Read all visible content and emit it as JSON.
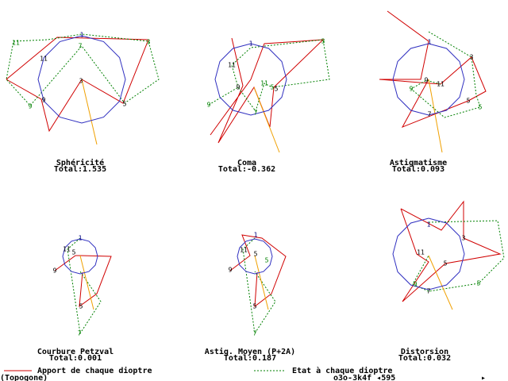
{
  "panels": [
    {
      "title": "Sphéricité",
      "total": "Total:1.535",
      "labels": [
        "11",
        "1",
        "3",
        "11",
        "7",
        "3",
        "9",
        "9",
        "5"
      ]
    },
    {
      "title": "Coma",
      "total": "Total:-0.362",
      "labels": [
        "1",
        "11",
        "3",
        "9",
        "11",
        "5",
        "5",
        "9",
        "7"
      ]
    },
    {
      "title": "Astigmatisme",
      "total": "Total:0.093",
      "labels": [
        "1",
        "3",
        "9",
        "11",
        "9",
        "5",
        "7",
        "5"
      ]
    },
    {
      "title": "Courbure Petzval",
      "total": "Total:0.001",
      "labels": [
        "1",
        "11",
        "5",
        "9",
        "5",
        "7"
      ]
    },
    {
      "title": "Astig. Moyen (P+2A)",
      "total": "Total:0.187",
      "labels": [
        "1",
        "11",
        "5",
        "5",
        "9",
        "5",
        "7"
      ]
    },
    {
      "title": "Distorsion",
      "total": "Total:0.032",
      "labels": [
        "1",
        "3",
        "11",
        "5",
        "9",
        "5",
        "7"
      ]
    }
  ],
  "legend": {
    "red": "Apport de chaque dioptre",
    "green": "Etat à chaque dioptre"
  },
  "status": {
    "left": "(Topogone)",
    "right": "o3o-3k4f ◂595",
    "arrow": "▸"
  }
}
